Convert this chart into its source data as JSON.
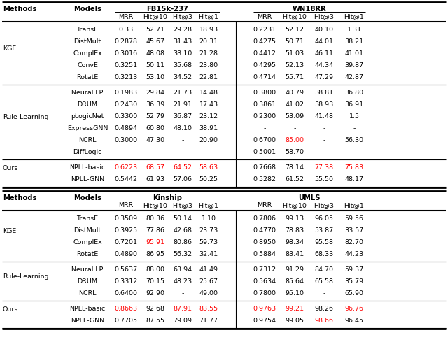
{
  "table1": {
    "datasets": [
      "FB15k-237",
      "WN18RR"
    ],
    "sections": [
      {
        "method": "KGE",
        "models": [
          "TransE",
          "DistMult",
          "ComplEx",
          "ConvE",
          "RotatE"
        ],
        "col1": [
          [
            "0.33",
            "52.71",
            "29.28",
            "18.93"
          ],
          [
            "0.2878",
            "45.67",
            "31.43",
            "20.31"
          ],
          [
            "0.3016",
            "48.08",
            "33.10",
            "21.28"
          ],
          [
            "0.3251",
            "50.11",
            "35.68",
            "23.80"
          ],
          [
            "0.3213",
            "53.10",
            "34.52",
            "22.81"
          ]
        ],
        "col2": [
          [
            "0.2231",
            "52.12",
            "40.10",
            "1.31"
          ],
          [
            "0.4275",
            "50.71",
            "44.01",
            "38.21"
          ],
          [
            "0.4412",
            "51.03",
            "46.11",
            "41.01"
          ],
          [
            "0.4295",
            "52.13",
            "44.34",
            "39.87"
          ],
          [
            "0.4714",
            "55.71",
            "47.29",
            "42.87"
          ]
        ],
        "col1_red": [
          [
            false,
            false,
            false,
            false
          ],
          [
            false,
            false,
            false,
            false
          ],
          [
            false,
            false,
            false,
            false
          ],
          [
            false,
            false,
            false,
            false
          ],
          [
            false,
            false,
            false,
            false
          ]
        ],
        "col2_red": [
          [
            false,
            false,
            false,
            false
          ],
          [
            false,
            false,
            false,
            false
          ],
          [
            false,
            false,
            false,
            false
          ],
          [
            false,
            false,
            false,
            false
          ],
          [
            false,
            false,
            false,
            false
          ]
        ]
      },
      {
        "method": "Rule-Learning",
        "models": [
          "Neural LP",
          "DRUM",
          "pLogicNet",
          "ExpressGNN",
          "NCRL",
          "DiffLogic"
        ],
        "col1": [
          [
            "0.1983",
            "29.84",
            "21.73",
            "14.48"
          ],
          [
            "0.2430",
            "36.39",
            "21.91",
            "17.43"
          ],
          [
            "0.3300",
            "52.79",
            "36.87",
            "23.12"
          ],
          [
            "0.4894",
            "60.80",
            "48.10",
            "38.91"
          ],
          [
            "0.3000",
            "47.30",
            "-",
            "20.90"
          ],
          [
            "-",
            "-",
            "-",
            "-"
          ]
        ],
        "col2": [
          [
            "0.3800",
            "40.79",
            "38.81",
            "36.80"
          ],
          [
            "0.3861",
            "41.02",
            "38.93",
            "36.91"
          ],
          [
            "0.2300",
            "53.09",
            "41.48",
            "1.5"
          ],
          [
            "-",
            "-",
            "-",
            "-"
          ],
          [
            "0.6700",
            "85.00",
            "-",
            "56.30"
          ],
          [
            "0.5001",
            "58.70",
            "-",
            "-"
          ]
        ],
        "col1_red": [
          [
            false,
            false,
            false,
            false
          ],
          [
            false,
            false,
            false,
            false
          ],
          [
            false,
            false,
            false,
            false
          ],
          [
            false,
            false,
            false,
            false
          ],
          [
            false,
            false,
            false,
            false
          ],
          [
            false,
            false,
            false,
            false
          ]
        ],
        "col2_red": [
          [
            false,
            false,
            false,
            false
          ],
          [
            false,
            false,
            false,
            false
          ],
          [
            false,
            false,
            false,
            false
          ],
          [
            false,
            false,
            false,
            false
          ],
          [
            false,
            true,
            false,
            false
          ],
          [
            false,
            false,
            false,
            false
          ]
        ]
      },
      {
        "method": "Ours",
        "models": [
          "NPLL-basic",
          "NPLL-GNN"
        ],
        "col1": [
          [
            "0.6223",
            "68.57",
            "64.52",
            "58.63"
          ],
          [
            "0.5442",
            "61.93",
            "57.06",
            "50.25"
          ]
        ],
        "col2": [
          [
            "0.7668",
            "78.14",
            "77.38",
            "75.83"
          ],
          [
            "0.5282",
            "61.52",
            "55.50",
            "48.17"
          ]
        ],
        "col1_red": [
          [
            true,
            true,
            true,
            true
          ],
          [
            false,
            false,
            false,
            false
          ]
        ],
        "col2_red": [
          [
            false,
            false,
            true,
            true
          ],
          [
            false,
            false,
            false,
            false
          ]
        ]
      }
    ]
  },
  "table2": {
    "datasets": [
      "Kinship",
      "UMLS"
    ],
    "sections": [
      {
        "method": "KGE",
        "models": [
          "TransE",
          "DistMult",
          "ComplEx",
          "RotatE"
        ],
        "col1": [
          [
            "0.3509",
            "80.36",
            "50.14",
            "1.10"
          ],
          [
            "0.3925",
            "77.86",
            "42.68",
            "23.73"
          ],
          [
            "0.7201",
            "95.91",
            "80.86",
            "59.73"
          ],
          [
            "0.4890",
            "86.95",
            "56.32",
            "32.41"
          ]
        ],
        "col2": [
          [
            "0.7806",
            "99.13",
            "96.05",
            "59.56"
          ],
          [
            "0.4770",
            "78.83",
            "53.87",
            "33.57"
          ],
          [
            "0.8950",
            "98.34",
            "95.58",
            "82.70"
          ],
          [
            "0.5884",
            "83.41",
            "68.33",
            "44.23"
          ]
        ],
        "col1_red": [
          [
            false,
            false,
            false,
            false
          ],
          [
            false,
            false,
            false,
            false
          ],
          [
            false,
            true,
            false,
            false
          ],
          [
            false,
            false,
            false,
            false
          ]
        ],
        "col2_red": [
          [
            false,
            false,
            false,
            false
          ],
          [
            false,
            false,
            false,
            false
          ],
          [
            false,
            false,
            false,
            false
          ],
          [
            false,
            false,
            false,
            false
          ]
        ]
      },
      {
        "method": "Rule-Learning",
        "models": [
          "Neural LP",
          "DRUM",
          "NCRL"
        ],
        "col1": [
          [
            "0.5637",
            "88.00",
            "63.94",
            "41.49"
          ],
          [
            "0.3312",
            "70.15",
            "48.23",
            "25.67"
          ],
          [
            "0.6400",
            "92.90",
            "-",
            "49.00"
          ]
        ],
        "col2": [
          [
            "0.7312",
            "91.29",
            "84.70",
            "59.37"
          ],
          [
            "0.5634",
            "85.64",
            "65.58",
            "35.79"
          ],
          [
            "0.7800",
            "95.10",
            "-",
            "65.90"
          ]
        ],
        "col1_red": [
          [
            false,
            false,
            false,
            false
          ],
          [
            false,
            false,
            false,
            false
          ],
          [
            false,
            false,
            false,
            false
          ]
        ],
        "col2_red": [
          [
            false,
            false,
            false,
            false
          ],
          [
            false,
            false,
            false,
            false
          ],
          [
            false,
            false,
            false,
            false
          ]
        ]
      },
      {
        "method": "Ours",
        "models": [
          "NPLL-basic",
          "NPLL-GNN"
        ],
        "col1": [
          [
            "0.8663",
            "92.68",
            "87.91",
            "83.55"
          ],
          [
            "0.7705",
            "87.55",
            "79.09",
            "71.77"
          ]
        ],
        "col2": [
          [
            "0.9763",
            "99.21",
            "98.26",
            "96.76"
          ],
          [
            "0.9754",
            "99.05",
            "98.66",
            "96.45"
          ]
        ],
        "col1_red": [
          [
            true,
            false,
            true,
            true
          ],
          [
            false,
            false,
            false,
            false
          ]
        ],
        "col2_red": [
          [
            true,
            true,
            false,
            true
          ],
          [
            false,
            false,
            true,
            false
          ]
        ]
      }
    ]
  },
  "red_color": "#ff0000",
  "black_color": "#000000",
  "bg_color": "#ffffff",
  "font_size": 6.8,
  "header_font_size": 7.2
}
